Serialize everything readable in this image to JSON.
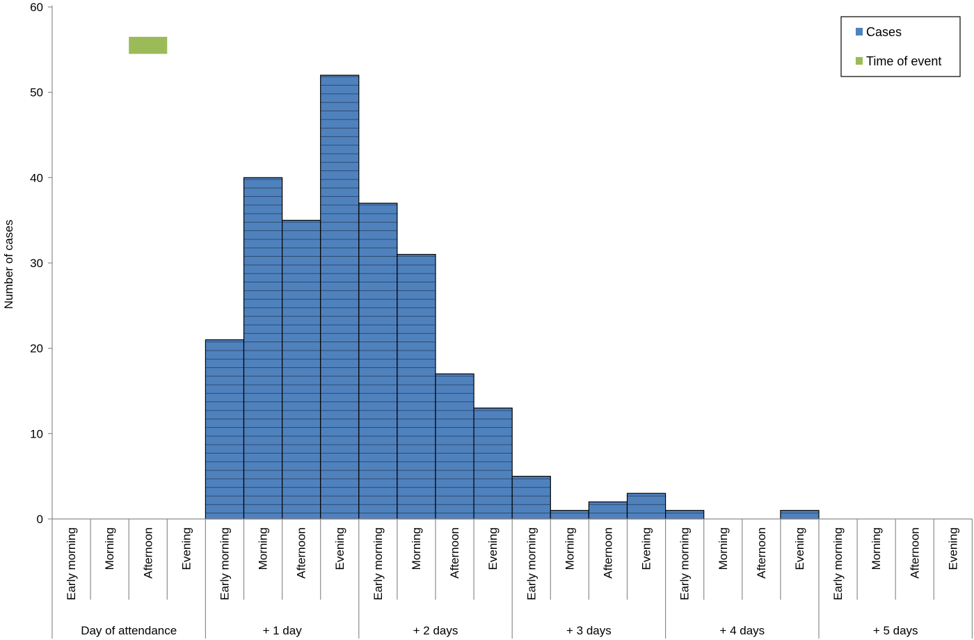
{
  "chart_data": {
    "type": "bar",
    "title": "",
    "ylabel": "Number of cases",
    "xlabel": "",
    "ylim": [
      0,
      60
    ],
    "yticks": [
      0,
      10,
      20,
      30,
      40,
      50,
      60
    ],
    "grid": false,
    "legend_position": "top-right",
    "categories": [
      "Early morning",
      "Morning",
      "Afternoon",
      "Evening",
      "Early morning",
      "Morning",
      "Afternoon",
      "Evening",
      "Early morning",
      "Morning",
      "Afternoon",
      "Evening",
      "Early morning",
      "Morning",
      "Afternoon",
      "Evening",
      "Early morning",
      "Morning",
      "Afternoon",
      "Evening",
      "Early morning",
      "Morning",
      "Afternoon",
      "Evening"
    ],
    "groups": [
      {
        "label": "Day of attendance",
        "count": 4
      },
      {
        "label": "+ 1 day",
        "count": 4
      },
      {
        "label": "+ 2 days",
        "count": 4
      },
      {
        "label": "+ 3 days",
        "count": 4
      },
      {
        "label": "+ 4 days",
        "count": 4
      },
      {
        "label": "+ 5 days",
        "count": 4
      }
    ],
    "series": [
      {
        "name": "Cases",
        "color": "#4f81bd",
        "pattern": "horizontal-lines",
        "values": [
          0,
          0,
          0,
          0,
          21,
          40,
          35,
          52,
          37,
          31,
          17,
          13,
          5,
          1,
          2,
          3,
          1,
          0,
          0,
          1,
          0,
          0,
          0,
          0
        ]
      }
    ],
    "event": {
      "name": "Time of event",
      "color": "#9bbb59",
      "start_index": 2,
      "end_index": 3,
      "y_range": [
        54.5,
        56.5
      ]
    },
    "legend": [
      {
        "label": "Cases",
        "color": "#4f81bd"
      },
      {
        "label": "Time of event",
        "color": "#9bbb59"
      }
    ]
  }
}
